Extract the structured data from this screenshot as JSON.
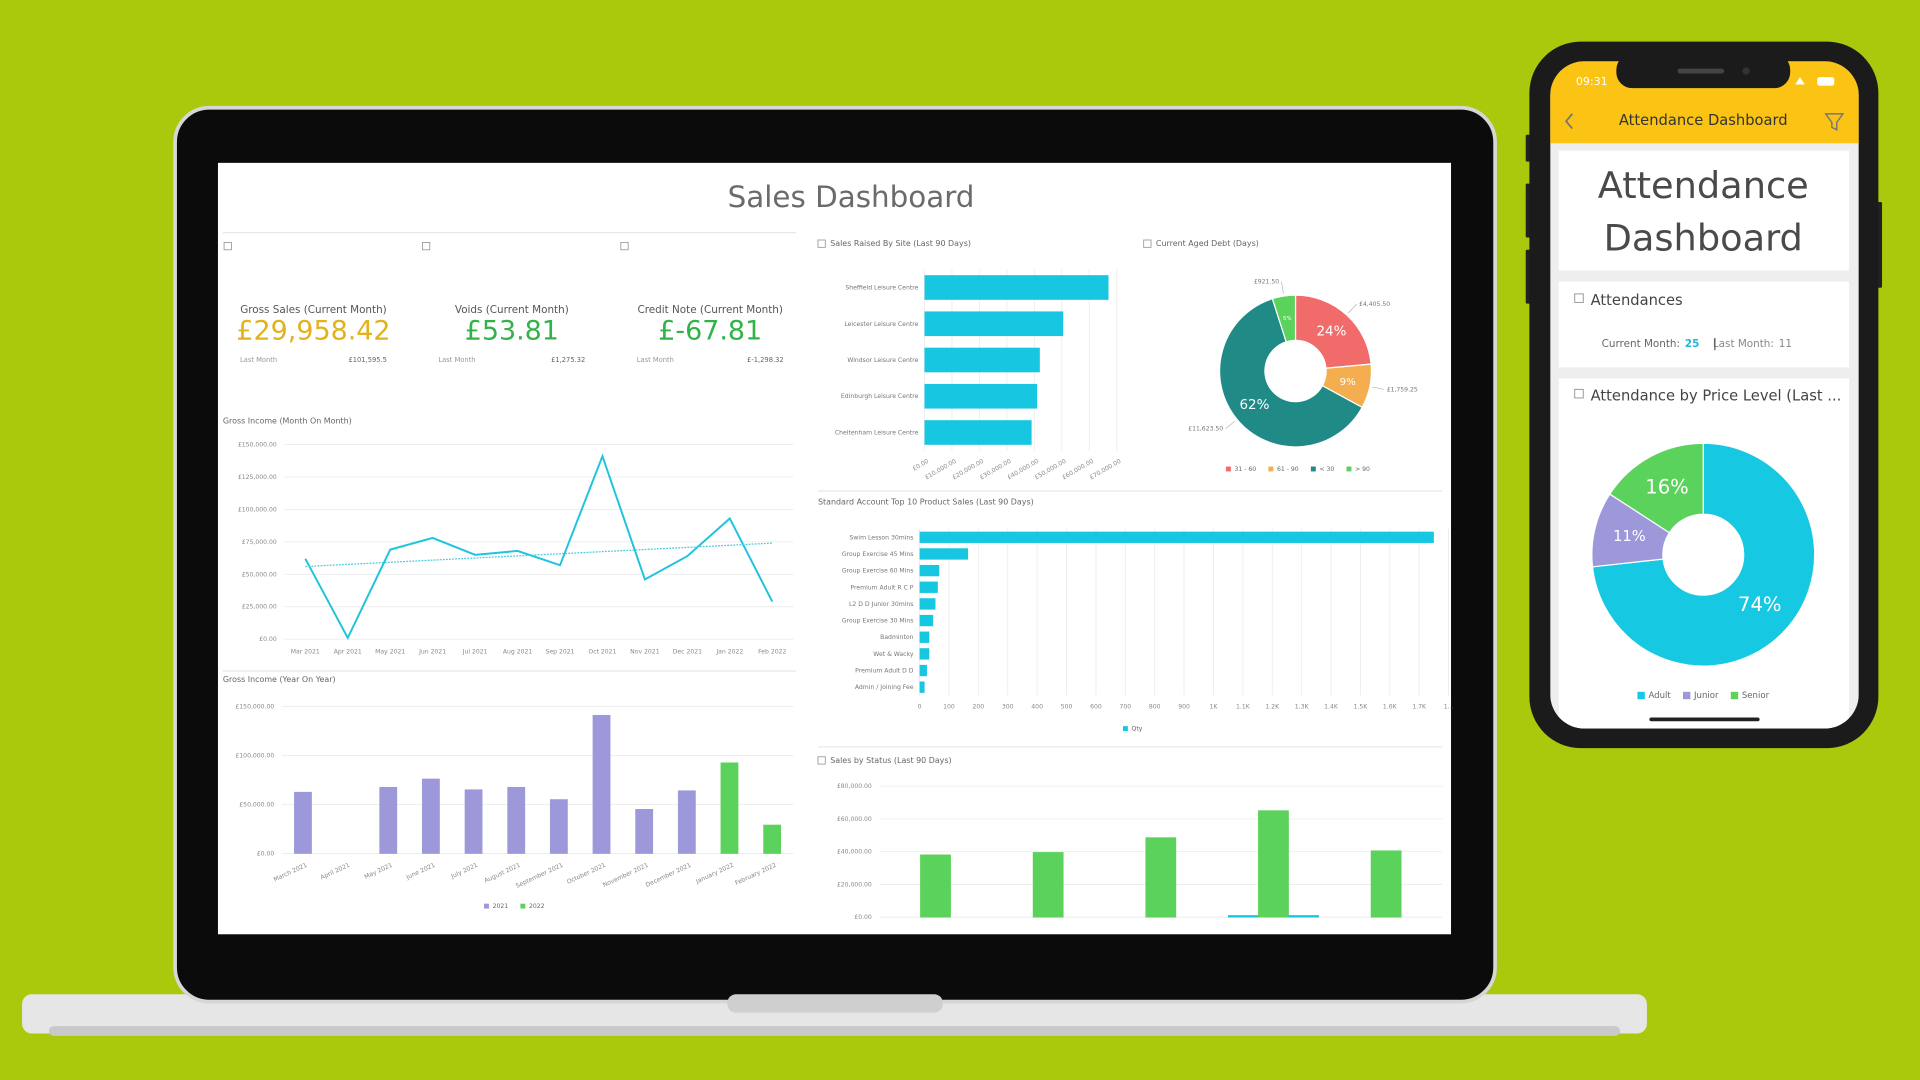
{
  "laptop": {
    "title": "Sales Dashboard",
    "kpis": [
      {
        "label": "Gross Sales  (Current Month)",
        "value": "£29,958.42",
        "color": "#e2b21c",
        "last_label": "Last Month",
        "last_value": "£101,595.5"
      },
      {
        "label": "Voids (Current Month)",
        "value": "£53.81",
        "color": "#33b24a",
        "last_label": "Last Month",
        "last_value": "£1,275.32"
      },
      {
        "label": "Credit Note (Current Month)",
        "value": "£-67.81",
        "color": "#33b24a",
        "last_label": "Last Month",
        "last_value": "£-1,298.32"
      }
    ],
    "charts": [
      {
        "type": "line",
        "title": "Gross Income (Month On Month)",
        "categories": [
          "Mar 2021",
          "Apr 2021",
          "May 2021",
          "Jun 2021",
          "Jul 2021",
          "Aug 2021",
          "Sep 2021",
          "Oct 2021",
          "Nov 2021",
          "Dec 2021",
          "Jan 2022",
          "Feb 2022"
        ],
        "series": [
          {
            "color": "#1fc3db",
            "values": [
              62000,
              1000,
              69000,
              78000,
              65000,
              68000,
              57000,
              141000,
              46000,
              64000,
              93000,
              29000
            ]
          }
        ],
        "trendline": [
          56000,
          74000
        ],
        "trend_color": "#45c9de",
        "ylim": [
          0,
          150000
        ],
        "yticks": [
          {
            "value": 0,
            "label": "£0.00"
          },
          {
            "value": 25000,
            "label": "£25,000.00"
          },
          {
            "value": 50000,
            "label": "£50,000.00"
          },
          {
            "value": 75000,
            "label": "£75,000.00"
          },
          {
            "value": 100000,
            "label": "£100,000.00"
          },
          {
            "value": 125000,
            "label": "£125,000.00"
          },
          {
            "value": 150000,
            "label": "£150,000.00"
          }
        ],
        "grid": true
      },
      {
        "type": "bar",
        "title": "Gross Income (Year On Year)",
        "categories": [
          "March 2021",
          "April 2021",
          "May 2021",
          "June 2021",
          "July 2021",
          "August 2021",
          "September 2021",
          "October 2021",
          "November 2021",
          "December 2021",
          "January 2022",
          "February 2022"
        ],
        "series": [
          {
            "name": "2021",
            "color": "#9c98da",
            "values": [
              62500,
              null,
              67500,
              76000,
              65000,
              67500,
              55000,
              141000,
              45000,
              64000,
              null,
              null
            ]
          },
          {
            "name": "2022",
            "color": "#5bd25b",
            "values": [
              null,
              null,
              null,
              null,
              null,
              null,
              null,
              null,
              null,
              null,
              92500,
              29000
            ]
          }
        ],
        "ylim": [
          0,
          150000
        ],
        "yticks": [
          {
            "value": 0,
            "label": "£0.00"
          },
          {
            "value": 50000,
            "label": "£50,000.00"
          },
          {
            "value": 100000,
            "label": "£100,000.00"
          },
          {
            "value": 150000,
            "label": "£150,000.00"
          }
        ],
        "grid": true
      },
      {
        "type": "hbar",
        "title": "Sales Raised By Site (Last 90 Days)",
        "categories": [
          "Sheffield Leisure Centre",
          "Leicester Leisure Centre",
          "Windsor Leisure Centre",
          "Edinburgh Leisure Centre",
          "Cheltenham Leisure Centre"
        ],
        "series": [
          {
            "color": "#17c6e0",
            "values": [
              67000,
              50500,
              42000,
              41000,
              39000
            ]
          }
        ],
        "xlim": [
          0,
          70000
        ],
        "xticks": [
          {
            "value": 0,
            "label": "£0.00"
          },
          {
            "value": 10000,
            "label": "£10,000.00"
          },
          {
            "value": 20000,
            "label": "£20,000.00"
          },
          {
            "value": 30000,
            "label": "£30,000.00"
          },
          {
            "value": 40000,
            "label": "£40,000.00"
          },
          {
            "value": 50000,
            "label": "£50,000.00"
          },
          {
            "value": 60000,
            "label": "£60,000.00"
          },
          {
            "value": 70000,
            "label": "£70,000.00"
          }
        ],
        "grid": true
      },
      {
        "type": "donut",
        "title": "Current Aged Debt (Days)",
        "categories": [
          "31 - 60",
          "61 - 90",
          "< 30",
          "> 90"
        ],
        "values": [
          4405.5,
          1759.25,
          11623.5,
          921.5
        ],
        "value_labels": [
          "£4,405.50",
          "£1,759.25",
          "£11,623.50",
          "£921.50"
        ],
        "percent_labels": [
          "24%",
          "9%",
          "62%",
          "5%"
        ],
        "colors": [
          "#f26b6b",
          "#f4ae4f",
          "#1f8a86",
          "#5bd25b"
        ]
      },
      {
        "type": "hbar",
        "title": "Standard Account Top 10 Product Sales (Last 90 Days)",
        "categories": [
          "Swim Lesson 30mins",
          "Group Exercise 45 Mins",
          "Group Exercise 60 Mins",
          "Premium Adult R C P",
          "L2 D D Junior 30mins",
          "Group Exercise 30 Mins",
          "Badminton",
          "Wet & Wacky",
          "Premium Adult D D",
          "Admin / Joining Fee"
        ],
        "series": [
          {
            "name": "Qty",
            "color": "#17c6e0",
            "values": [
              1750,
              165,
              67,
              62,
              54,
              46,
              33,
              33,
              25,
              17
            ]
          }
        ],
        "xlim": [
          0,
          1800
        ],
        "xticks": [
          0,
          100,
          200,
          300,
          400,
          500,
          600,
          700,
          800,
          900,
          {
            "value": 1000,
            "label": "1K"
          },
          {
            "value": 1100,
            "label": "1.1K"
          },
          {
            "value": 1200,
            "label": "1.2K"
          },
          {
            "value": 1300,
            "label": "1.3K"
          },
          {
            "value": 1400,
            "label": "1.4K"
          },
          {
            "value": 1500,
            "label": "1.5K"
          },
          {
            "value": 1600,
            "label": "1.6K"
          },
          {
            "value": 1700,
            "label": "1.7K"
          },
          {
            "value": 1800,
            "label": "1..."
          }
        ],
        "grid": true
      },
      {
        "type": "bar",
        "title": "Sales by Status (Last 90 Days)",
        "series": [
          {
            "color": "#17c6e0",
            "values": [
              0,
              0,
              0,
              1000,
              0
            ]
          },
          {
            "color": "#5bd25b",
            "values": [
              38000,
              39500,
              48500,
              65000,
              40500
            ]
          },
          {
            "color": "#17c6e0",
            "values": [
              0,
              0,
              0,
              1000,
              0
            ]
          }
        ],
        "ylim": [
          0,
          80000
        ],
        "yticks": [
          {
            "value": 0,
            "label": "£0.00"
          },
          {
            "value": 20000,
            "label": "£20,000.00"
          },
          {
            "value": 40000,
            "label": "£40,000.00"
          },
          {
            "value": 60000,
            "label": "£60,000.00"
          },
          {
            "value": 80000,
            "label": "£80,000.00"
          }
        ],
        "grid": true
      }
    ]
  },
  "phone": {
    "status_time": "09:31",
    "header_title": "Attendance Dashboard",
    "title_lines": [
      "Attendance",
      "Dashboard"
    ],
    "attendances": {
      "title": "Attendances",
      "current_label": "Current Month:",
      "current_value": 25,
      "last_label": "Last Month:",
      "last_value": 11
    },
    "price_level": {
      "type": "donut",
      "title": "Attendance by Price Level (Last ...",
      "categories": [
        "Adult",
        "Junior",
        "Senior"
      ],
      "values": [
        74,
        11,
        16
      ],
      "value_labels": [
        "74%",
        "11%",
        "16%"
      ],
      "colors": [
        "#17c8e2",
        "#9c98da",
        "#5bd25b"
      ]
    }
  }
}
